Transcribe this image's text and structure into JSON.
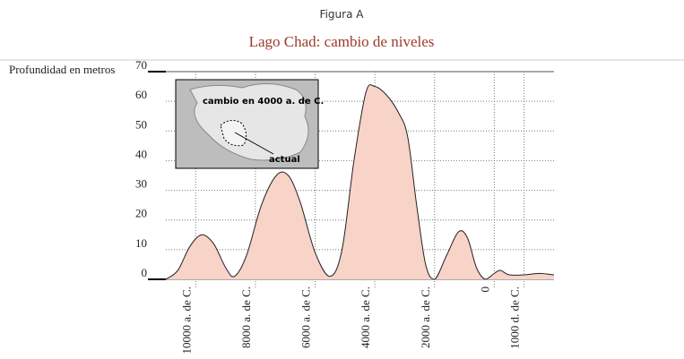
{
  "chart_data": {
    "type": "area",
    "figure": "Figura A",
    "title": "Lago Chad: cambio de niveles",
    "y_label": "Profundidad en metros",
    "annotations": [
      "cambio en 4000 a. de C.",
      "actual"
    ],
    "color": "#f7d3c8",
    "x": [
      -11000,
      -10600,
      -10200,
      -9800,
      -9400,
      -9000,
      -8700,
      -8300,
      -7800,
      -7300,
      -6900,
      -6500,
      -6000,
      -5500,
      -5100,
      -4700,
      -4300,
      -4000,
      -3600,
      -3200,
      -2900,
      -2600,
      -2300,
      -2000,
      -1600,
      -1200,
      -900,
      -600,
      -300,
      0,
      200,
      500,
      1000,
      1500,
      2000
    ],
    "values": [
      0,
      3,
      11,
      15,
      12,
      4,
      1,
      8,
      25,
      35,
      35,
      26,
      9,
      1,
      10,
      40,
      63,
      65,
      62,
      56,
      48,
      25,
      5,
      0,
      8,
      16,
      14,
      4,
      0,
      2,
      3,
      1.5,
      1.5,
      2,
      1.5
    ],
    "xlim": [
      -11000,
      2000
    ],
    "xticks": [
      {
        "value": -10000,
        "label": "10000 a. de C."
      },
      {
        "value": -8000,
        "label": "8000 a. de C."
      },
      {
        "value": -6000,
        "label": "6000 a. de C."
      },
      {
        "value": -4000,
        "label": "4000 a. de C."
      },
      {
        "value": -2000,
        "label": "2000 a. de C."
      },
      0,
      {
        "value": 1000,
        "label": "1000 d. de C."
      }
    ],
    "ylim": [
      0,
      70
    ],
    "yticks": [
      0,
      10,
      20,
      30,
      40,
      50,
      60,
      70
    ],
    "grid": true
  }
}
